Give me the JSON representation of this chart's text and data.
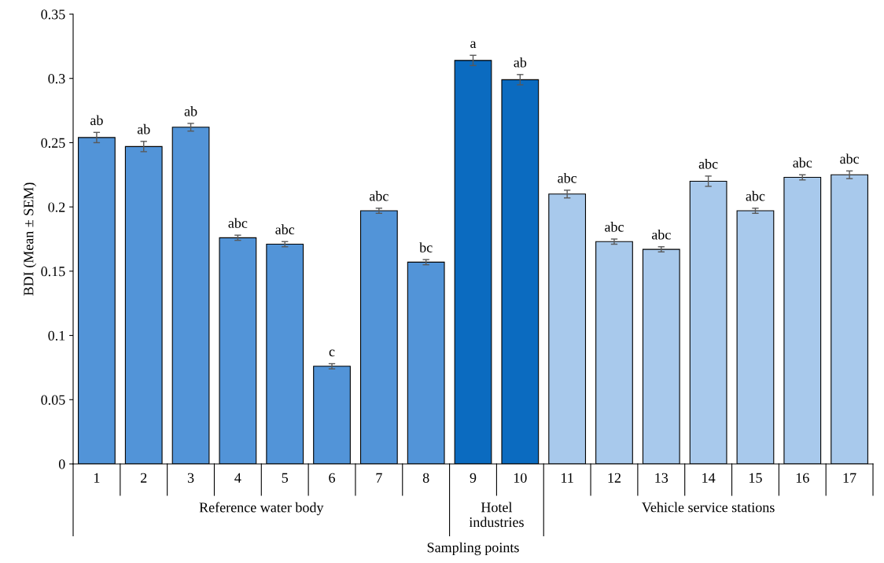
{
  "chart_data": {
    "type": "bar",
    "xlabel": "Sampling points",
    "ylabel": "BDI (Mean ± SEM)",
    "categories": [
      "1",
      "2",
      "3",
      "4",
      "5",
      "6",
      "7",
      "8",
      "9",
      "10",
      "11",
      "12",
      "13",
      "14",
      "15",
      "16",
      "17"
    ],
    "values": [
      0.254,
      0.247,
      0.262,
      0.176,
      0.171,
      0.076,
      0.197,
      0.157,
      0.314,
      0.299,
      0.21,
      0.173,
      0.167,
      0.22,
      0.197,
      0.223,
      0.225
    ],
    "errors": [
      0.004,
      0.004,
      0.003,
      0.002,
      0.002,
      0.002,
      0.002,
      0.002,
      0.004,
      0.004,
      0.003,
      0.002,
      0.002,
      0.004,
      0.002,
      0.002,
      0.003
    ],
    "colors": [
      "#5294d8",
      "#5294d8",
      "#5294d8",
      "#5294d8",
      "#5294d8",
      "#5294d8",
      "#5294d8",
      "#5294d8",
      "#0b6bc0",
      "#0b6bc0",
      "#a8c9ec",
      "#a8c9ec",
      "#a8c9ec",
      "#a8c9ec",
      "#a8c9ec",
      "#a8c9ec",
      "#a8c9ec"
    ],
    "ylim": [
      0,
      0.35
    ],
    "yticks": [
      0,
      0.05,
      0.1,
      0.15,
      0.2,
      0.25,
      0.3,
      0.35
    ],
    "grid": false,
    "annotations": [
      {
        "text": "ab",
        "x": "1",
        "y": 0.254
      },
      {
        "text": "ab",
        "x": "2",
        "y": 0.247
      },
      {
        "text": "ab",
        "x": "3",
        "y": 0.262
      },
      {
        "text": "abc",
        "x": "4",
        "y": 0.176
      },
      {
        "text": "abc",
        "x": "5",
        "y": 0.171
      },
      {
        "text": "c",
        "x": "6",
        "y": 0.076
      },
      {
        "text": "abc",
        "x": "7",
        "y": 0.197
      },
      {
        "text": "bc",
        "x": "8",
        "y": 0.157
      },
      {
        "text": "a",
        "x": "9",
        "y": 0.314
      },
      {
        "text": "ab",
        "x": "10",
        "y": 0.299
      },
      {
        "text": "abc",
        "x": "11",
        "y": 0.21
      },
      {
        "text": "abc",
        "x": "12",
        "y": 0.173
      },
      {
        "text": "abc",
        "x": "13",
        "y": 0.167
      },
      {
        "text": "abc",
        "x": "14",
        "y": 0.22
      },
      {
        "text": "abc",
        "x": "15",
        "y": 0.197
      },
      {
        "text": "abc",
        "x": "16",
        "y": 0.223
      },
      {
        "text": "abc",
        "x": "17",
        "y": 0.225
      },
      "Reference water body",
      "Hotel\nindustries",
      "Vehicle service stations"
    ]
  }
}
